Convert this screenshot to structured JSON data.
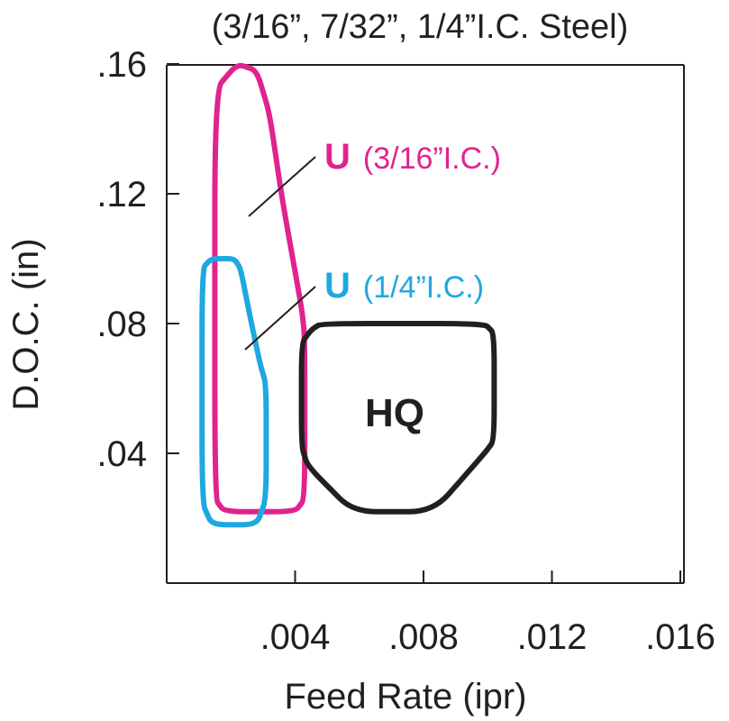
{
  "chart_data": {
    "type": "area",
    "title": "(3/16”, 7/32”, 1/4”I.C. Steel)",
    "xlabel": "Feed Rate (ipr)",
    "ylabel": "D.O.C. (in)",
    "xlim": [
      0,
      0.016
    ],
    "ylim": [
      0,
      0.16
    ],
    "x_ticks": [
      ".004",
      ".008",
      ".012",
      ".016"
    ],
    "y_ticks": [
      ".16",
      ".12",
      ".08",
      ".04"
    ],
    "grid": false,
    "colors": {
      "u_3_16": "#e0238f",
      "u_1_4": "#1ea8e0",
      "hq": "#231f20",
      "axis": "#231f20"
    },
    "regions": [
      {
        "label_main": "U",
        "label_detail": "(3/16”I.C.)",
        "color_key": "u_3_16",
        "outline": [
          [
            0.0015,
            0.152
          ],
          [
            0.0022,
            0.16
          ],
          [
            0.0028,
            0.158
          ],
          [
            0.0032,
            0.145
          ],
          [
            0.0036,
            0.118
          ],
          [
            0.0042,
            0.085
          ],
          [
            0.0043,
            0.076
          ],
          [
            0.0043,
            0.026
          ],
          [
            0.004,
            0.022
          ],
          [
            0.0018,
            0.022
          ],
          [
            0.0015,
            0.026
          ]
        ]
      },
      {
        "label_main": "U",
        "label_detail": "(1/4”I.C.)",
        "color_key": "u_1_4",
        "outline": [
          [
            0.0011,
            0.097
          ],
          [
            0.0014,
            0.1
          ],
          [
            0.0021,
            0.1
          ],
          [
            0.0023,
            0.097
          ],
          [
            0.0026,
            0.082
          ],
          [
            0.0029,
            0.068
          ],
          [
            0.0031,
            0.061
          ],
          [
            0.0031,
            0.026
          ],
          [
            0.0028,
            0.018
          ],
          [
            0.0014,
            0.018
          ],
          [
            0.0011,
            0.025
          ]
        ]
      },
      {
        "label_main": "HQ",
        "color_key": "hq",
        "outline": [
          [
            0.0045,
            0.078
          ],
          [
            0.0048,
            0.08
          ],
          [
            0.0099,
            0.08
          ],
          [
            0.0102,
            0.077
          ],
          [
            0.0102,
            0.044
          ],
          [
            0.0099,
            0.04
          ],
          [
            0.0083,
            0.022
          ],
          [
            0.0058,
            0.022
          ],
          [
            0.0044,
            0.036
          ],
          [
            0.0042,
            0.042
          ],
          [
            0.0042,
            0.074
          ]
        ]
      }
    ]
  }
}
